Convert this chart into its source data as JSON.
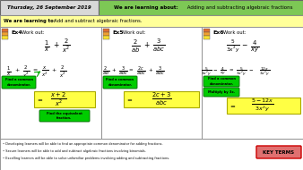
{
  "title_date": "Thursday, 26 September 2019",
  "title_topic_bold": "We are learning about:",
  "title_topic_rest": " Adding and subtracting algebraic fractions",
  "learning_bold": "We are learning to:",
  "learning_rest": "  Add and subtract algebraic fractions.",
  "header_green": "#7dc855",
  "date_bg": "#e8e8e8",
  "learning_bg": "#ffff99",
  "body_bg": "#f0f0f0",
  "panel_bg": "#ffffff",
  "green_box_bg": "#00cc00",
  "yellow_box_bg": "#ffff44",
  "footer_lines": [
    "• Developing learners will be able to find an appropriate common denominator for adding fractions.",
    "• Secure learners will be able to add and subtract algebraic fractions involving binomials.",
    "• Excelling learners will be able to solve unfamiliar problems involving adding and subtracting fractions."
  ],
  "key_terms_text": "KEY TERMS",
  "key_terms_bg": "#e07070",
  "diff_colors": [
    "#e07030",
    "#f0a030",
    "#f8e030"
  ]
}
